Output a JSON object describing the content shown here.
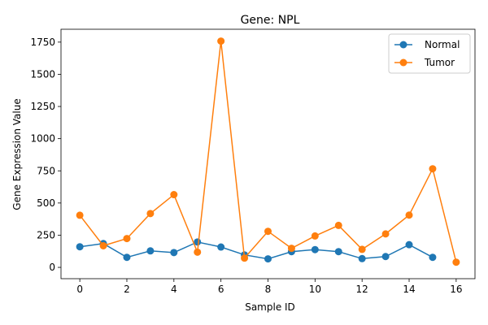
{
  "chart_data": {
    "type": "line",
    "title": "Gene: NPL",
    "xlabel": "Sample ID",
    "ylabel": "Gene Expression Value",
    "xlim": [
      -0.8,
      16.8
    ],
    "ylim": [
      -88,
      1850
    ],
    "x_ticks": [
      0,
      2,
      4,
      6,
      8,
      10,
      12,
      14,
      16
    ],
    "y_ticks": [
      0,
      250,
      500,
      750,
      1000,
      1250,
      1500,
      1750
    ],
    "legend_position": "top-right",
    "series": [
      {
        "name": "Normal",
        "color": "#1f77b4",
        "x": [
          0,
          1,
          2,
          3,
          4,
          5,
          6,
          7,
          8,
          9,
          10,
          11,
          12,
          13,
          14,
          15
        ],
        "values": [
          160,
          185,
          78,
          128,
          115,
          197,
          158,
          97,
          66,
          122,
          138,
          122,
          68,
          84,
          176,
          78
        ]
      },
      {
        "name": "Tumor",
        "color": "#ff7f0e",
        "x": [
          0,
          1,
          2,
          3,
          4,
          5,
          6,
          7,
          8,
          9,
          10,
          11,
          12,
          13,
          14,
          15,
          16
        ],
        "values": [
          405,
          168,
          224,
          418,
          565,
          118,
          1758,
          72,
          280,
          148,
          244,
          326,
          140,
          260,
          406,
          766,
          40
        ]
      }
    ]
  }
}
